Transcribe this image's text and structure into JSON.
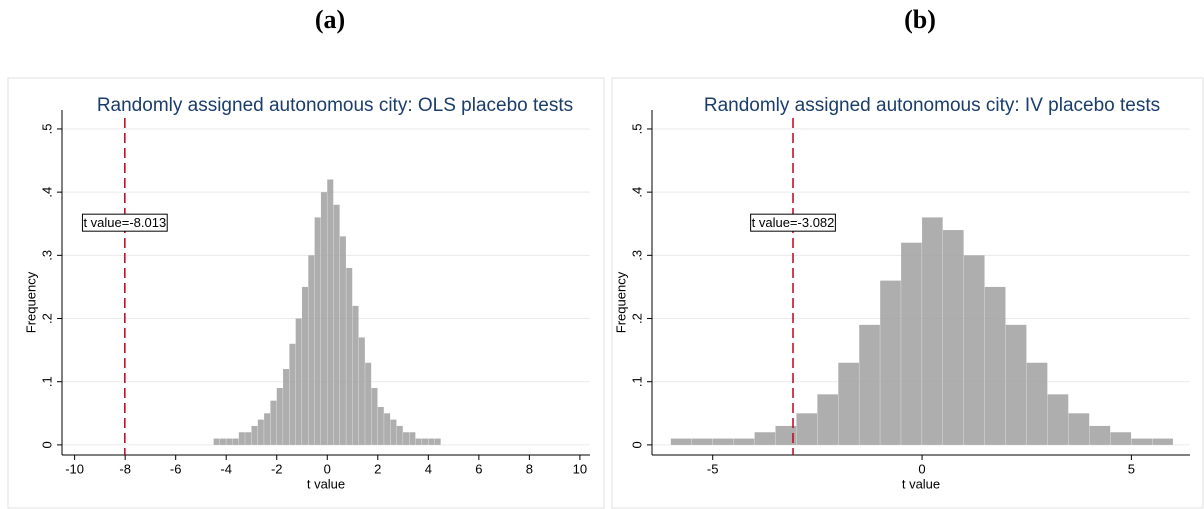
{
  "chart_data": [
    {
      "type": "histogram",
      "panel": "(a)",
      "title": "Randomly assigned autonomous city: OLS placebo tests",
      "x_label": "t value",
      "y_label": "Frequency",
      "color": "#a0a0a0",
      "bins": [
        -4.5,
        -4.25,
        -4,
        -3.75,
        -3.5,
        -3.25,
        -3,
        -2.75,
        -2.5,
        -2.25,
        -2,
        -1.75,
        -1.5,
        -1.25,
        -1,
        -0.75,
        -0.5,
        -0.25,
        0,
        0.25,
        0.5,
        0.75,
        1,
        1.25,
        1.5,
        1.75,
        2,
        2.25,
        2.5,
        2.75,
        3,
        3.25,
        3.5,
        3.75,
        4,
        4.25,
        4.5
      ],
      "values": [
        0.01,
        0.01,
        0.01,
        0.01,
        0.02,
        0.02,
        0.03,
        0.04,
        0.05,
        0.07,
        0.09,
        0.12,
        0.16,
        0.2,
        0.25,
        0.3,
        0.36,
        0.4,
        0.42,
        0.38,
        0.33,
        0.28,
        0.22,
        0.17,
        0.13,
        0.09,
        0.06,
        0.05,
        0.04,
        0.03,
        0.02,
        0.02,
        0.01,
        0.01,
        0.01,
        0.01
      ],
      "xlim": [
        -10.5,
        10.4
      ],
      "ylim": [
        -0.016,
        0.53
      ],
      "xticks": [
        -10,
        -8,
        -6,
        -4,
        -2,
        0,
        2,
        4,
        6,
        8,
        10
      ],
      "yticks": [
        0,
        {
          "value": 0.1,
          "label": ".1"
        },
        {
          "value": 0.2,
          "label": ".2"
        },
        {
          "value": 0.3,
          "label": ".3"
        },
        {
          "value": 0.4,
          "label": ".4"
        },
        {
          "value": 0.5,
          "label": ".5"
        }
      ],
      "grid": true,
      "reference_line": {
        "x": -8.013,
        "label": "t value=-8.013",
        "color": "#c0001a"
      }
    },
    {
      "type": "histogram",
      "panel": "(b)",
      "title": "Randomly assigned autonomous city: IV placebo tests",
      "x_label": "t value",
      "y_label": "Frequency",
      "color": "#a0a0a0",
      "bins": [
        -6,
        -5.5,
        -5,
        -4.5,
        -4,
        -3.5,
        -3,
        -2.5,
        -2,
        -1.5,
        -1,
        -0.5,
        0,
        0.5,
        1,
        1.5,
        2,
        2.5,
        3,
        3.5,
        4,
        4.5,
        5,
        5.5,
        6
      ],
      "values": [
        0.01,
        0.01,
        0.01,
        0.01,
        0.02,
        0.03,
        0.05,
        0.08,
        0.13,
        0.19,
        0.26,
        0.32,
        0.36,
        0.34,
        0.3,
        0.25,
        0.19,
        0.13,
        0.08,
        0.05,
        0.03,
        0.02,
        0.01,
        0.01
      ],
      "xlim": [
        -6.45,
        6.4
      ],
      "ylim": [
        -0.016,
        0.53
      ],
      "xticks": [
        -5,
        0,
        5
      ],
      "yticks": [
        0,
        {
          "value": 0.1,
          "label": ".1"
        },
        {
          "value": 0.2,
          "label": ".2"
        },
        {
          "value": 0.3,
          "label": ".3"
        },
        {
          "value": 0.4,
          "label": ".4"
        },
        {
          "value": 0.5,
          "label": ".5"
        }
      ],
      "grid": true,
      "reference_line": {
        "x": -3.082,
        "label": "t value=-3.082",
        "color": "#c0001a"
      }
    }
  ]
}
